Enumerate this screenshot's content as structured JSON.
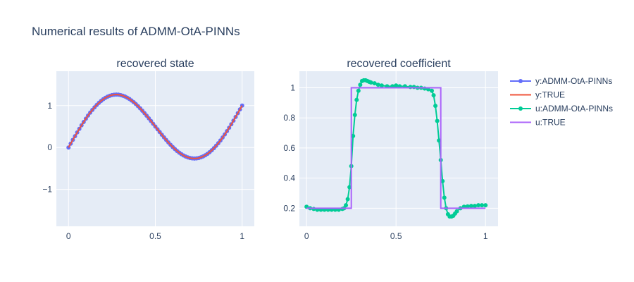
{
  "figure": {
    "title": "Numerical results of ADMM-OtA-PINNs"
  },
  "colors": {
    "plot_bg": "#e5ecf6",
    "grid": "#ffffff",
    "y_pred": "#636efa",
    "y_true": "#ef553b",
    "u_pred": "#00cc96",
    "u_true": "#ab63fa"
  },
  "legend": {
    "placement": "right",
    "items": [
      {
        "label": "y:ADMM-OtA-PINNs",
        "color_key": "y_pred",
        "markers": true
      },
      {
        "label": "y:TRUE",
        "color_key": "y_true",
        "markers": false
      },
      {
        "label": "u:ADMM-OtA-PINNs",
        "color_key": "u_pred",
        "markers": true
      },
      {
        "label": "u:TRUE",
        "color_key": "u_true",
        "markers": false
      }
    ]
  },
  "chart_data": [
    {
      "type": "line",
      "title": "recovered state",
      "xlabel": "",
      "ylabel": "",
      "xlim": [
        -0.07,
        1.07
      ],
      "ylim": [
        -1.88,
        1.82
      ],
      "xticks": [
        0,
        0.5,
        1
      ],
      "xtick_labels": [
        "0",
        "0.5",
        "1"
      ],
      "yticks": [
        -1,
        0,
        1
      ],
      "ytick_labels": [
        "−1",
        "0",
        "1"
      ],
      "grid": true,
      "series": [
        {
          "name": "y:ADMM-OtA-PINNs",
          "markers": true,
          "color_key": "y_pred",
          "formula": "y(x) = x + sin(2*pi*x), sampled at 81 points on [0, 1]",
          "x_range": [
            0,
            1
          ],
          "n_points": 81
        },
        {
          "name": "y:TRUE",
          "markers": false,
          "color_key": "y_true",
          "formula": "y(x) = x + sin(2*pi*x)",
          "x_range": [
            0,
            1
          ],
          "n_points": 201
        }
      ]
    },
    {
      "type": "line",
      "title": "recovered coefficient",
      "xlabel": "",
      "ylabel": "",
      "xlim": [
        -0.04,
        1.07
      ],
      "ylim": [
        0.08,
        1.11
      ],
      "xticks": [
        0,
        0.5,
        1
      ],
      "xtick_labels": [
        "0",
        "0.5",
        "1"
      ],
      "yticks": [
        0.2,
        0.4,
        0.6,
        0.8,
        1
      ],
      "ytick_labels": [
        "0.2",
        "0.4",
        "0.6",
        "0.8",
        "1"
      ],
      "grid": true,
      "series": [
        {
          "name": "u:ADMM-OtA-PINNs",
          "markers": true,
          "color_key": "u_pred",
          "x": [
            0,
            0.02,
            0.04,
            0.06,
            0.08,
            0.1,
            0.12,
            0.14,
            0.16,
            0.18,
            0.2,
            0.21,
            0.22,
            0.23,
            0.24,
            0.25,
            0.26,
            0.27,
            0.28,
            0.29,
            0.3,
            0.31,
            0.32,
            0.33,
            0.34,
            0.35,
            0.36,
            0.38,
            0.4,
            0.42,
            0.45,
            0.48,
            0.5,
            0.52,
            0.55,
            0.58,
            0.6,
            0.62,
            0.64,
            0.66,
            0.68,
            0.7,
            0.71,
            0.72,
            0.73,
            0.74,
            0.75,
            0.76,
            0.77,
            0.78,
            0.79,
            0.8,
            0.81,
            0.82,
            0.83,
            0.84,
            0.86,
            0.88,
            0.9,
            0.92,
            0.94,
            0.96,
            0.98,
            1
          ],
          "y": [
            0.21,
            0.2,
            0.195,
            0.19,
            0.19,
            0.19,
            0.19,
            0.19,
            0.19,
            0.19,
            0.195,
            0.2,
            0.22,
            0.26,
            0.34,
            0.48,
            0.68,
            0.82,
            0.92,
            0.98,
            1.02,
            1.045,
            1.05,
            1.05,
            1.045,
            1.04,
            1.035,
            1.03,
            1.02,
            1.015,
            1.01,
            1.01,
            1.015,
            1.01,
            1.01,
            1.005,
            1.005,
            1.0,
            1.0,
            0.995,
            0.99,
            0.98,
            0.95,
            0.88,
            0.78,
            0.65,
            0.52,
            0.38,
            0.27,
            0.2,
            0.16,
            0.145,
            0.145,
            0.15,
            0.165,
            0.18,
            0.2,
            0.21,
            0.212,
            0.215,
            0.215,
            0.22,
            0.22,
            0.22
          ]
        },
        {
          "name": "u:TRUE",
          "markers": false,
          "color_key": "u_true",
          "x": [
            0,
            0.25,
            0.25,
            0.75,
            0.75,
            1
          ],
          "y": [
            0.2,
            0.2,
            1.0,
            1.0,
            0.2,
            0.2
          ]
        }
      ]
    }
  ]
}
